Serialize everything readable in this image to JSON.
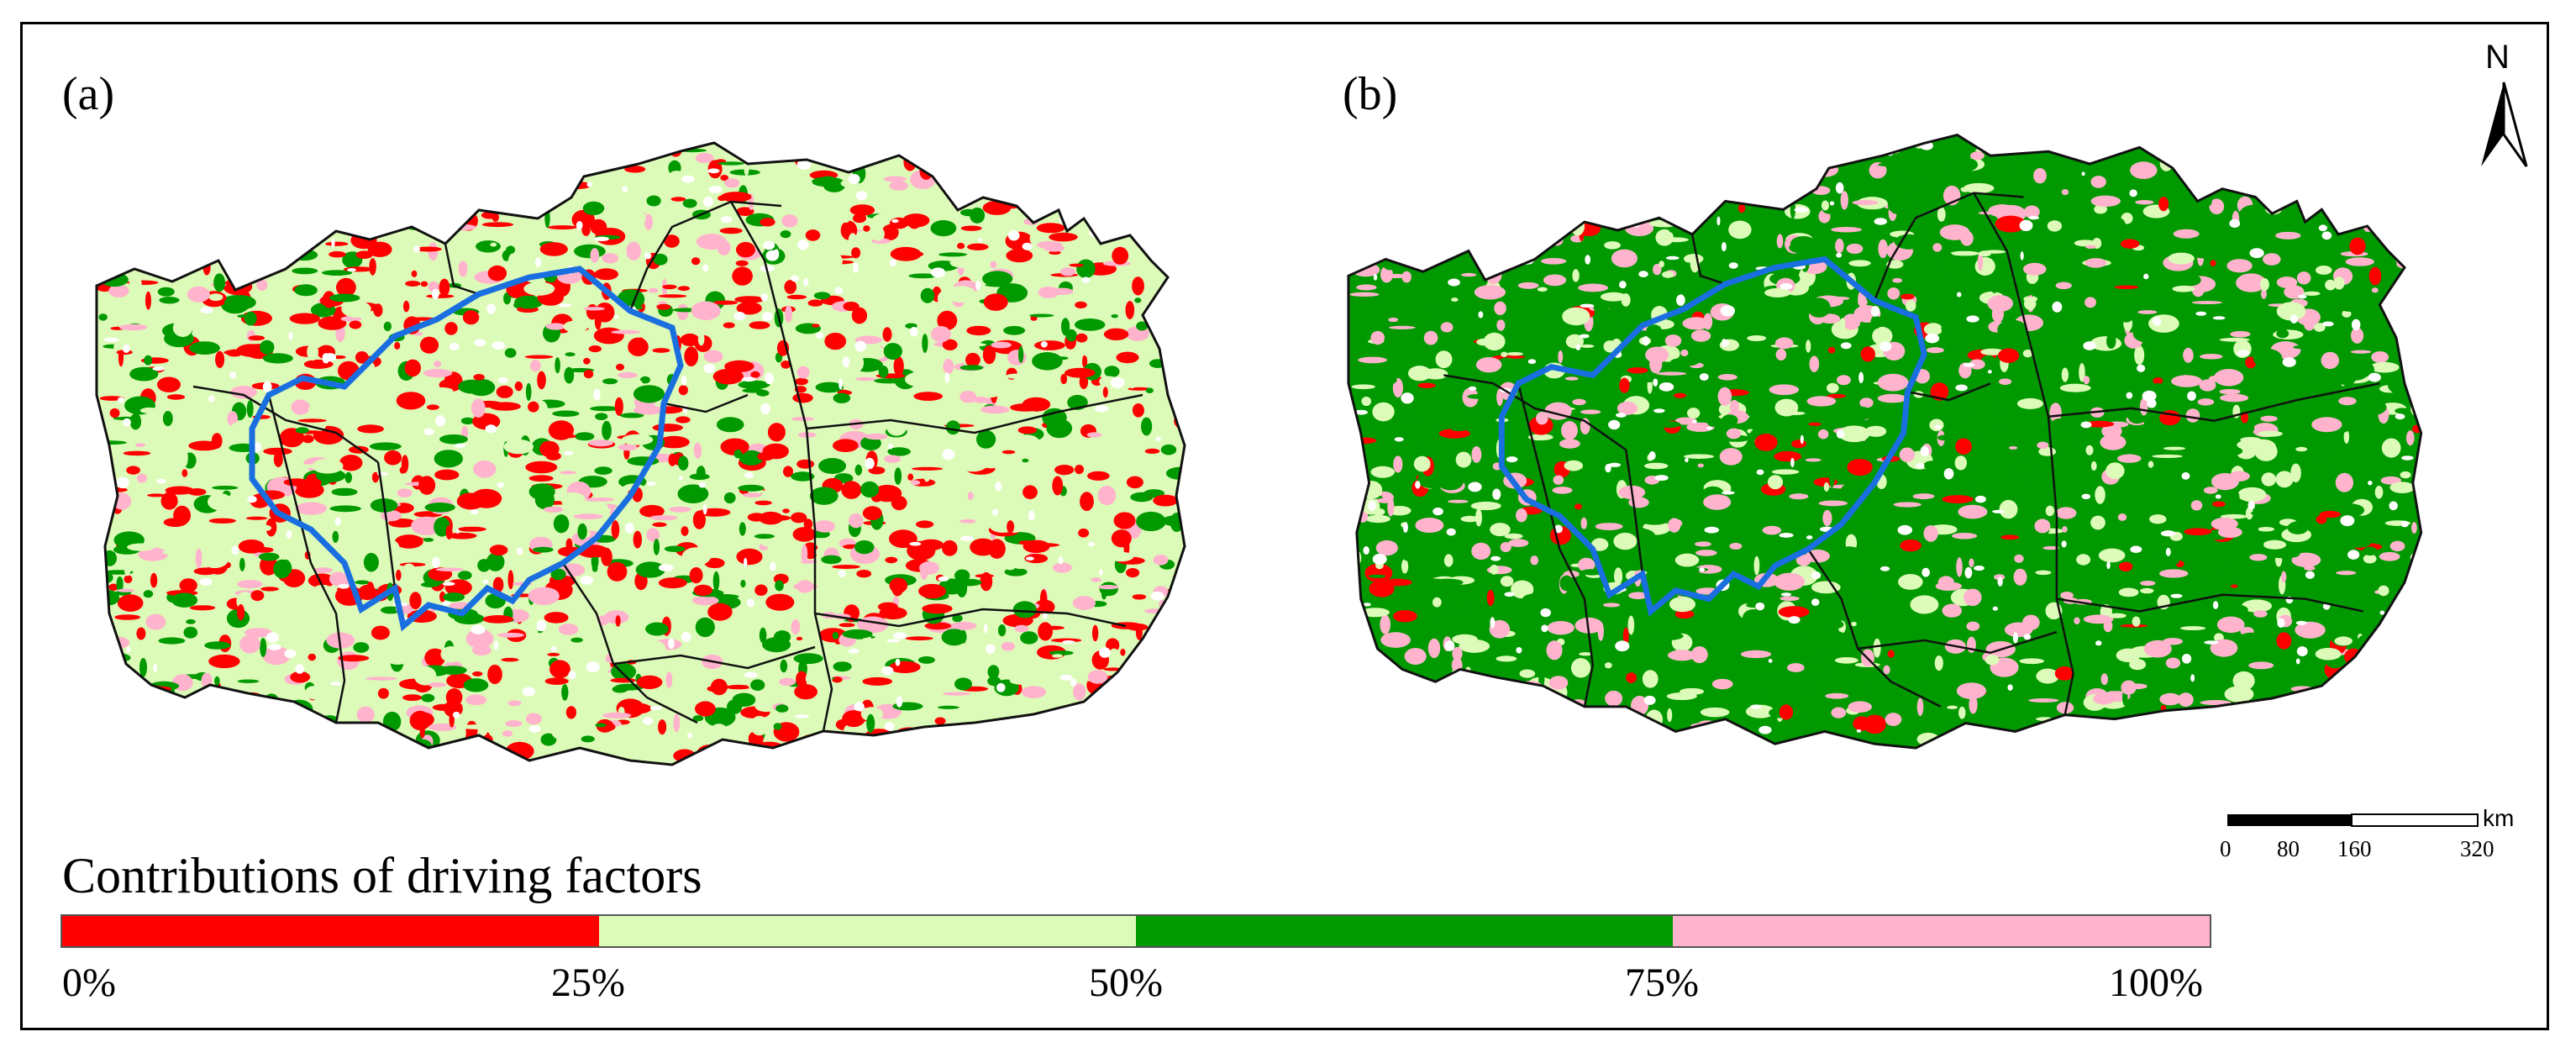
{
  "panels": [
    {
      "label": "(a)",
      "class_mix": [
        0.28,
        0.44,
        0.18,
        0.1
      ]
    },
    {
      "label": "(b)",
      "class_mix": [
        0.04,
        0.16,
        0.62,
        0.18
      ]
    }
  ],
  "north_arrow": {
    "letter": "N"
  },
  "scale_bar": {
    "unit": "km",
    "ticks": [
      "0",
      "80",
      "160",
      "320"
    ]
  },
  "legend": {
    "title": "Contributions of driving factors",
    "colors": [
      "#ff0000",
      "#ddfbb8",
      "#009900",
      "#ffb3cc"
    ],
    "ticks": [
      "0%",
      "25%",
      "50%",
      "75%",
      "100%"
    ]
  }
}
